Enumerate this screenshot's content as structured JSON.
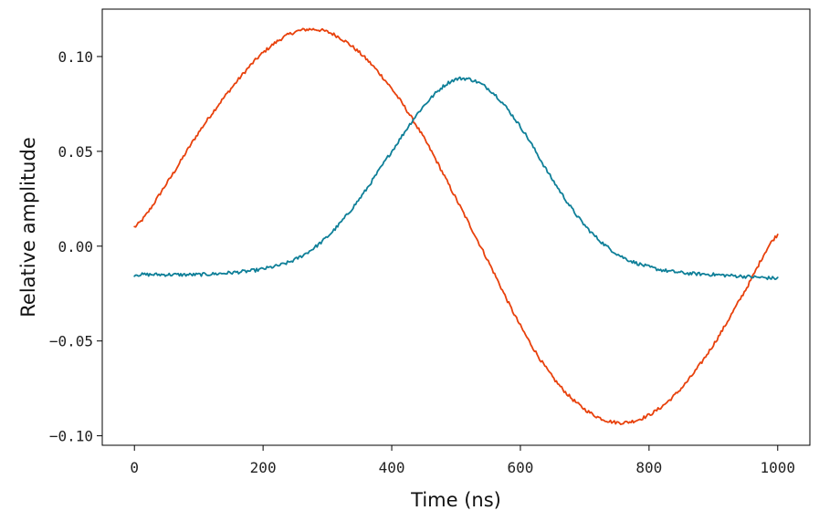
{
  "chart_data": {
    "type": "line",
    "title": "",
    "xlabel": "Time (ns)",
    "ylabel": "Relative amplitude",
    "xlim": [
      -50,
      1050
    ],
    "ylim": [
      -0.105,
      0.125
    ],
    "xticks": [
      0,
      200,
      400,
      600,
      800,
      1000
    ],
    "xtick_labels": [
      "0",
      "200",
      "400",
      "600",
      "800",
      "1000"
    ],
    "yticks": [
      -0.1,
      -0.05,
      0.0,
      0.05,
      0.1
    ],
    "ytick_labels": [
      "−0.10",
      "−0.05",
      "0.00",
      "0.05",
      "0.10"
    ],
    "grid": false,
    "legend": "none",
    "series": [
      {
        "color": "#e8410c",
        "x": [
          0,
          50,
          100,
          150,
          200,
          250,
          300,
          350,
          400,
          450,
          500,
          550,
          600,
          650,
          700,
          750,
          800,
          850,
          900,
          950,
          1000
        ],
        "y": [
          0.01,
          0.033,
          0.06,
          0.083,
          0.102,
          0.113,
          0.113,
          0.102,
          0.083,
          0.057,
          0.025,
          -0.008,
          -0.042,
          -0.069,
          -0.086,
          -0.093,
          -0.089,
          -0.075,
          -0.052,
          -0.023,
          0.006
        ]
      },
      {
        "color": "#0e7f98",
        "x": [
          0,
          50,
          100,
          150,
          200,
          250,
          300,
          350,
          400,
          450,
          500,
          550,
          600,
          650,
          700,
          750,
          800,
          850,
          900,
          950,
          1000
        ],
        "y": [
          -0.015,
          -0.015,
          -0.015,
          -0.014,
          -0.012,
          -0.007,
          0.005,
          0.025,
          0.05,
          0.074,
          0.088,
          0.083,
          0.063,
          0.035,
          0.011,
          -0.004,
          -0.011,
          -0.014,
          -0.015,
          -0.016,
          -0.017
        ]
      }
    ]
  }
}
